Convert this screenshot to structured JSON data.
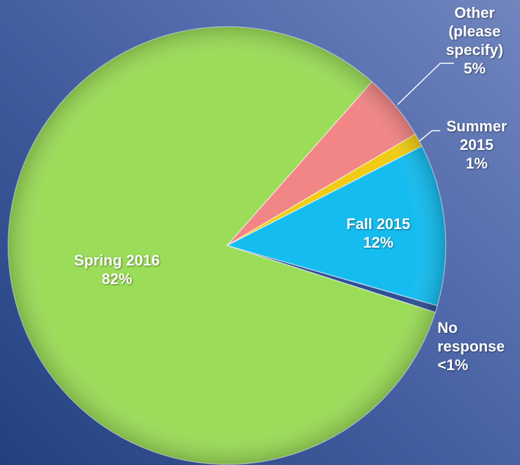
{
  "chart_data": {
    "type": "pie",
    "categories": [
      "Other (please specify)",
      "Summer 2015",
      "Fall 2015",
      "No response",
      "Spring 2016"
    ],
    "values": [
      5,
      1,
      12,
      0.5,
      82
    ],
    "value_labels": [
      "5%",
      "1%",
      "12%",
      "<1%",
      "82%"
    ],
    "colors": [
      "#f28585",
      "#f0cc14",
      "#14bcef",
      "#2f4f95",
      "#9bdc58"
    ]
  }
}
